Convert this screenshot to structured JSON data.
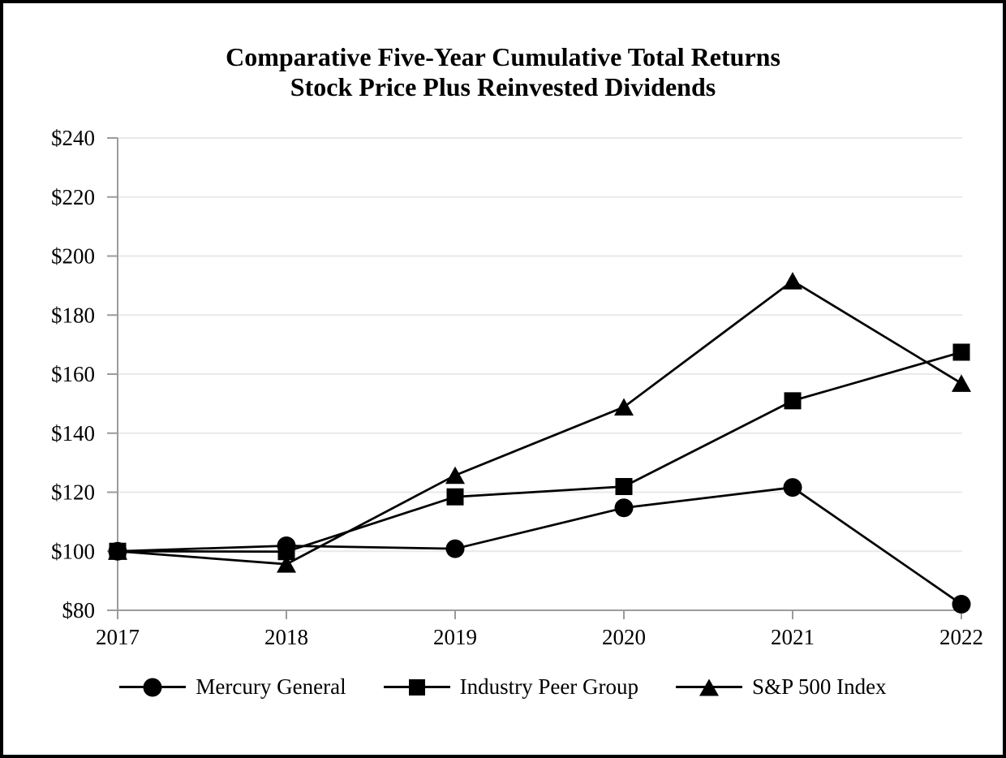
{
  "title": {
    "line1": "Comparative Five-Year Cumulative Total Returns",
    "line2": "Stock Price Plus Reinvested Dividends"
  },
  "chart_data": {
    "type": "line",
    "title": "Comparative Five-Year Cumulative Total Returns Stock Price Plus Reinvested Dividends",
    "x_tick_labels": [
      "2017",
      "2018",
      "2019",
      "2020",
      "2021",
      "2022"
    ],
    "y_ticks": [
      80,
      100,
      120,
      140,
      160,
      180,
      200,
      220,
      240
    ],
    "y_tick_labels": [
      "$80",
      "$100",
      "$120",
      "$140",
      "$160",
      "$180",
      "$200",
      "$220",
      "$240"
    ],
    "ylim": [
      80,
      240
    ],
    "grid": "horizontal-only",
    "legend_position": "bottom",
    "series": [
      {
        "name": "Mercury General",
        "marker": "circle",
        "values": [
          100,
          101.86,
          100.85,
          114.7,
          121.62,
          82.07
        ]
      },
      {
        "name": "Industry Peer Group",
        "marker": "square",
        "values": [
          100,
          99.87,
          118.43,
          121.92,
          150.97,
          167.43
        ]
      },
      {
        "name": "S&P 500 Index",
        "marker": "triangle",
        "values": [
          100,
          95.62,
          125.72,
          148.85,
          191.58,
          156.89
        ]
      }
    ],
    "colors": {
      "series": "#000000",
      "axis": "#9b9b9b",
      "gridline": "#e9e9e9",
      "text": "#000000",
      "background": "#ffffff",
      "page_border": "#000000"
    }
  }
}
